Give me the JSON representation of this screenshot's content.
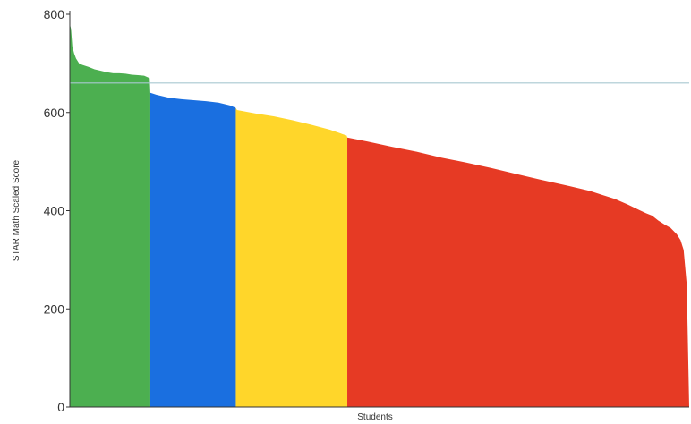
{
  "chart_data": {
    "type": "area",
    "xlabel": "Students",
    "ylabel": "STAR Math Scaled Score",
    "ylim": [
      0,
      800
    ],
    "yticks": [
      0,
      200,
      400,
      600,
      800
    ],
    "grid": false,
    "reference_line": {
      "y": 660,
      "color": "#a8c8d0"
    },
    "bands": [
      {
        "color": "#4caf50",
        "start_pct": 0,
        "end_pct": 13
      },
      {
        "color": "#1a6fe0",
        "start_pct": 13,
        "end_pct": 26.8
      },
      {
        "color": "#ffd62a",
        "start_pct": 26.8,
        "end_pct": 44.8
      },
      {
        "color": "#e63a24",
        "start_pct": 44.8,
        "end_pct": 100
      }
    ],
    "x": [
      0,
      0.2,
      0.4,
      0.7,
      1,
      1.5,
      2,
      3,
      4,
      5,
      6,
      7,
      8,
      9,
      10,
      11,
      12,
      12.9,
      13,
      14,
      16,
      18,
      20,
      22,
      24,
      26,
      26.8,
      27,
      30,
      33,
      36,
      39,
      42,
      44.7,
      44.8,
      48,
      52,
      56,
      60,
      64,
      68,
      72,
      76,
      80,
      84,
      86,
      88,
      90,
      92,
      93,
      94,
      95,
      96,
      97,
      98,
      98.6,
      99.1,
      99.6,
      100
    ],
    "y": [
      780,
      770,
      735,
      720,
      710,
      700,
      697,
      693,
      688,
      685,
      682,
      680,
      680,
      679,
      677,
      676,
      675,
      670,
      640,
      636,
      630,
      627,
      625,
      623,
      620,
      614,
      609,
      605,
      598,
      592,
      584,
      575,
      565,
      553,
      549,
      541,
      530,
      520,
      508,
      498,
      487,
      475,
      463,
      452,
      440,
      432,
      424,
      413,
      401,
      395,
      390,
      380,
      372,
      365,
      352,
      340,
      320,
      250,
      0
    ]
  }
}
